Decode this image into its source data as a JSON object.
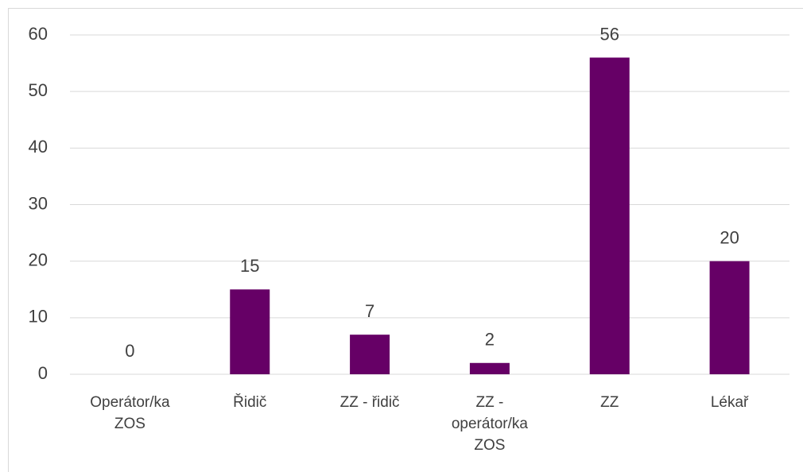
{
  "chart_data": {
    "type": "bar",
    "categories": [
      "Operátor/ka ZOS",
      "Řidič",
      "ZZ - řidič",
      "ZZ - operátor/ka ZOS",
      "ZZ",
      "Lékař"
    ],
    "values": [
      0,
      15,
      7,
      2,
      56,
      20
    ],
    "color": "#660066",
    "ylim": [
      0,
      60
    ],
    "yticks": [
      0,
      10,
      20,
      30,
      40,
      50,
      60
    ],
    "grid": true
  }
}
